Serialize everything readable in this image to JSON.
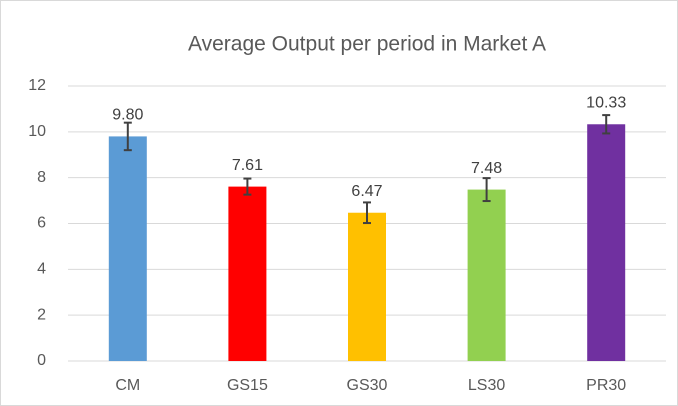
{
  "chart_data": {
    "type": "bar",
    "title": "Average Output per period in Market A",
    "categories": [
      "CM",
      "GS15",
      "GS30",
      "LS30",
      "PR30"
    ],
    "values": [
      9.8,
      7.61,
      6.47,
      7.48,
      10.33
    ],
    "value_labels": [
      "9.80",
      "7.61",
      "6.47",
      "7.48",
      "10.33"
    ],
    "errors": [
      0.6,
      0.35,
      0.45,
      0.5,
      0.4
    ],
    "colors": [
      "#5b9bd5",
      "#ff0000",
      "#ffc000",
      "#92d050",
      "#7030a0"
    ],
    "ylim": [
      0,
      12
    ],
    "yticks": [
      0,
      2,
      4,
      6,
      8,
      10,
      12
    ],
    "grid": true
  }
}
